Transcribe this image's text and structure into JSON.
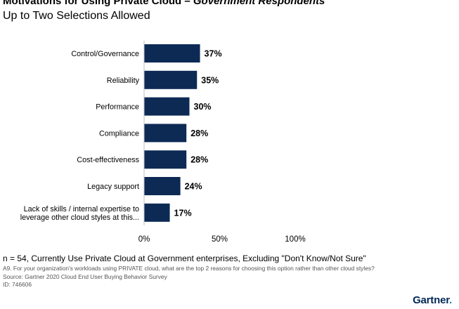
{
  "header": {
    "title_main": "Motivations for Using Private Cloud – ",
    "title_emphasis": "Government Respondents",
    "subtitle": "Up to Two Selections Allowed"
  },
  "chart_data": {
    "type": "bar",
    "orientation": "horizontal",
    "categories": [
      "Control/Governance",
      "Reliability",
      "Performance",
      "Compliance",
      "Cost-effectiveness",
      "Legacy support",
      "Lack of skills / internal expertise to leverage other cloud styles at this..."
    ],
    "category_lines": [
      [
        "Control/Governance"
      ],
      [
        "Reliability"
      ],
      [
        "Performance"
      ],
      [
        "Compliance"
      ],
      [
        "Cost-effectiveness"
      ],
      [
        "Legacy support"
      ],
      [
        "Lack of skills / internal expertise to",
        "leverage other cloud styles at this..."
      ]
    ],
    "values": [
      37,
      35,
      30,
      28,
      28,
      24,
      17
    ],
    "value_labels": [
      "37%",
      "35%",
      "30%",
      "28%",
      "28%",
      "24%",
      "17%"
    ],
    "xlim": [
      0,
      100
    ],
    "x_ticks": [
      0,
      50,
      100
    ],
    "x_tick_labels": [
      "0%",
      "50%",
      "100%"
    ],
    "xlabel": "",
    "ylabel": "",
    "grid": false,
    "bar_color": "#0d2a55"
  },
  "footnotes": {
    "sample": "n = 54, Currently Use Private Cloud at Government enterprises, Excluding \"Don't Know/Not Sure\"",
    "question": "A9. For your organization's workloads using PRIVATE cloud, what are the top 2 reasons for choosing this option rather than other cloud styles?",
    "source": "Source: Gartner 2020 Cloud End User Buying Behavior Survey",
    "id": "ID: 746606"
  },
  "brand": {
    "name": "Gartner",
    "dot": ".",
    "color": "#002856"
  }
}
